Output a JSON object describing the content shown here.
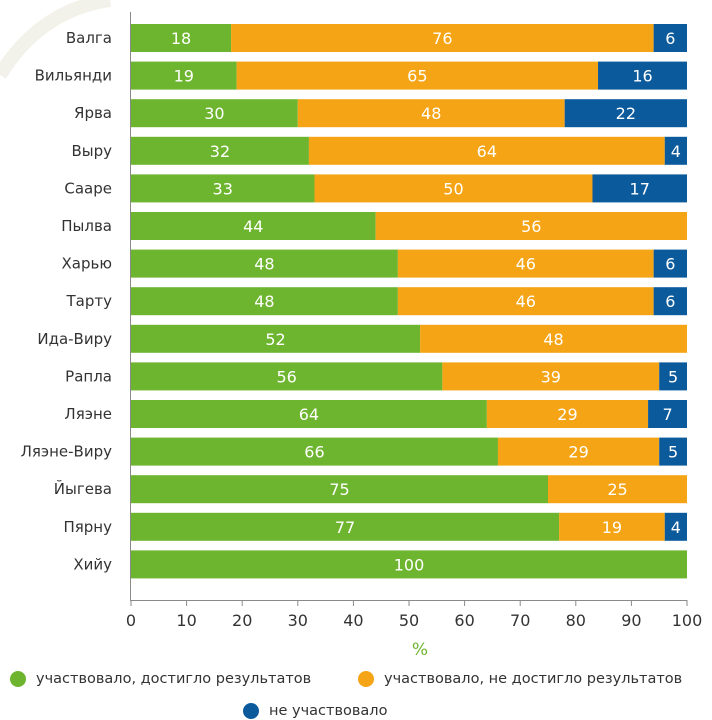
{
  "chart_data": {
    "type": "bar",
    "orientation": "horizontal",
    "stacked": true,
    "categories": [
      "Валга",
      "Вильянди",
      "Ярва",
      "Выру",
      "Сааре",
      "Пылва",
      "Харью",
      "Тарту",
      "Ида-Виру",
      "Рапла",
      "Ляэне",
      "Ляэне-Виру",
      "Йыгева",
      "Пярну",
      "Хийу"
    ],
    "series": [
      {
        "name": "участвовало, достигло результатов",
        "color": "#6eb52f",
        "values": [
          18,
          19,
          30,
          32,
          33,
          44,
          48,
          48,
          52,
          56,
          64,
          66,
          75,
          77,
          100
        ]
      },
      {
        "name": "участвовало, не достигло результатов",
        "color": "#f5a415",
        "values": [
          76,
          65,
          48,
          64,
          50,
          56,
          46,
          46,
          48,
          39,
          29,
          29,
          25,
          19,
          0
        ]
      },
      {
        "name": "не участвовало",
        "color": "#0b5a9c",
        "values": [
          6,
          16,
          22,
          4,
          17,
          0,
          6,
          6,
          0,
          5,
          7,
          5,
          0,
          4,
          0
        ]
      }
    ],
    "xlabel": "%",
    "xlim": [
      0,
      100
    ],
    "xticks": [
      0,
      10,
      20,
      30,
      40,
      50,
      60,
      70,
      80,
      90,
      100
    ],
    "grid": false,
    "legend_position": "bottom"
  }
}
